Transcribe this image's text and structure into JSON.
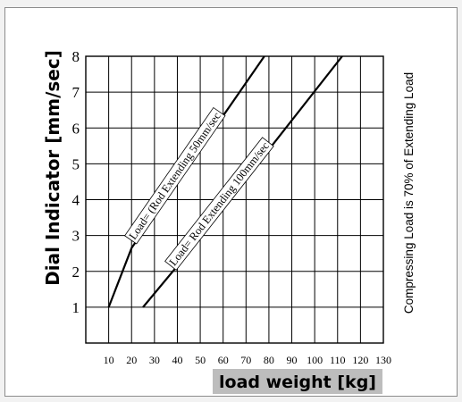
{
  "chart_data": {
    "type": "line",
    "ylabel": "Dial Indicator [mm/sec]",
    "xlabel": "load weight [kg]",
    "side_note": "Compressing Load is 70% of Extending Load",
    "xlim": [
      0,
      130
    ],
    "ylim": [
      0,
      8
    ],
    "x_ticks": [
      10,
      20,
      30,
      40,
      50,
      60,
      70,
      80,
      90,
      100,
      110,
      120,
      130
    ],
    "y_ticks": [
      1,
      2,
      3,
      4,
      5,
      6,
      7,
      8
    ],
    "grid": true,
    "series": [
      {
        "name": "Load= (Rod Extending 50mm/sec",
        "x": [
          10,
          20,
          78
        ],
        "y": [
          1,
          2.65,
          8
        ]
      },
      {
        "name": "Load= Rod Extending 100mm/sec",
        "x": [
          25,
          40,
          112
        ],
        "y": [
          1,
          2.15,
          8
        ]
      }
    ],
    "colors": {
      "frame": "#8c8c8c",
      "plot_bg": "#ffffff",
      "page_bg": "#f2f2f2",
      "line": "#000000"
    }
  }
}
